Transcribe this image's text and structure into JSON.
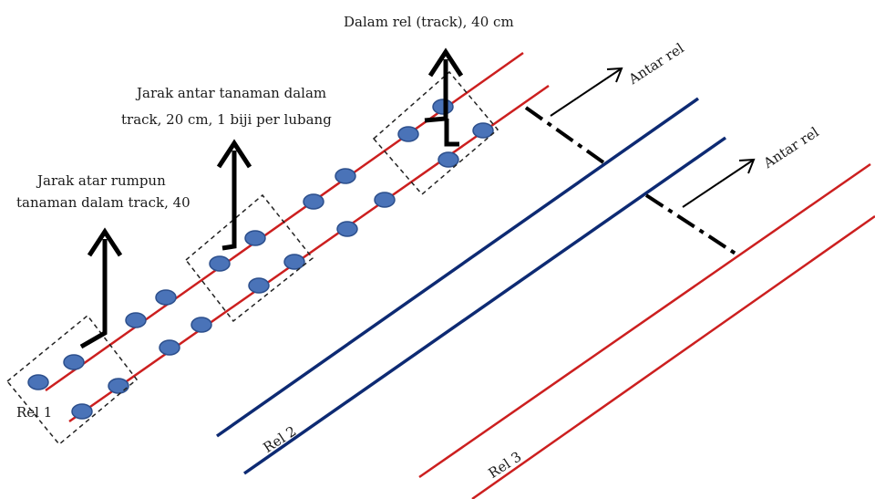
{
  "labels": {
    "top_center": "Dalam rel (track), 40 cm",
    "middle_line1": "Jarak antar tanaman dalam",
    "middle_line2": "track, 20 cm, 1 biji per lubang",
    "left_line1": "Jarak atar rumpun",
    "left_line2": "tanaman dalam track, 40",
    "antar_rel_1": "Antar rel",
    "antar_rel_2": "Antar rel",
    "rel_1": "Rel 1",
    "rel_2": "Rel 2",
    "rel_3": "Rel 3"
  },
  "colors": {
    "red_track": "#cc1f1f",
    "navy_track": "#0d2a73",
    "seed_fill": "#4a73b8",
    "seed_stroke": "#2c4f8c",
    "arrow": "#000000",
    "dashed_box": "#222222"
  }
}
